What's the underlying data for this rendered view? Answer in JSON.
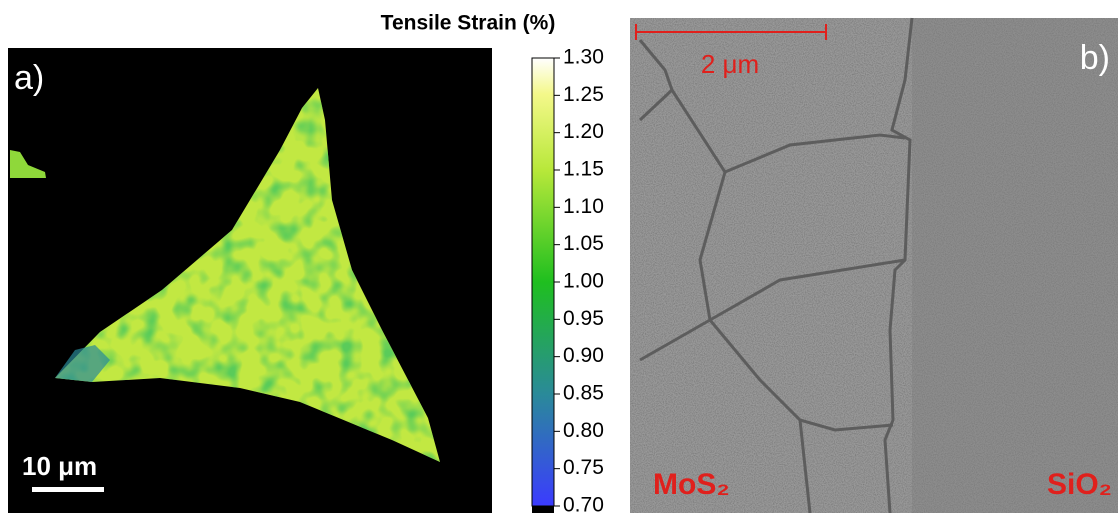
{
  "panel_a": {
    "label": "a)",
    "scale_bar": "10 μm"
  },
  "colorbar": {
    "title": "Tensile Strain (%)",
    "lim": [
      0.7,
      1.3
    ],
    "ticks": [
      {
        "value": 1.3,
        "label": "1.30"
      },
      {
        "value": 1.25,
        "label": "1.25"
      },
      {
        "value": 1.2,
        "label": "1.20"
      },
      {
        "value": 1.15,
        "label": "1.15"
      },
      {
        "value": 1.1,
        "label": "1.10"
      },
      {
        "value": 1.05,
        "label": "1.05"
      },
      {
        "value": 1,
        "label": "1.00"
      },
      {
        "value": 0.95,
        "label": "0.95"
      },
      {
        "value": 0.9,
        "label": "0.90"
      },
      {
        "value": 0.85,
        "label": "0.85"
      },
      {
        "value": 0.8,
        "label": "0.80"
      },
      {
        "value": 0.75,
        "label": "0.75"
      },
      {
        "value": 0.7,
        "label": "0.70"
      }
    ]
  },
  "panel_b": {
    "label": "b)",
    "scale_bar": "2 μm",
    "left_material": "MoS₂",
    "right_material": "SiO₂"
  }
}
